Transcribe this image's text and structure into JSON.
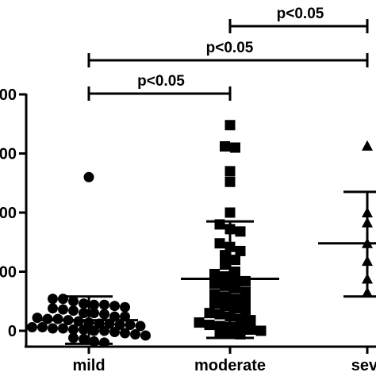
{
  "chart_data": {
    "type": "scatter",
    "subtype": "dot-plot-with-mean-sd",
    "title": "",
    "xlabel": "",
    "ylabel": "",
    "categories": [
      "mild",
      "moderate",
      "seve"
    ],
    "y_tick_labels": [
      "0",
      "00",
      "00",
      "00",
      "00"
    ],
    "y_tick_values": [
      0,
      100,
      200,
      300,
      400
    ],
    "ylim": [
      -20,
      420
    ],
    "grid": false,
    "legend": "none",
    "colors": {
      "points": "#000000",
      "axes": "#000000",
      "background": "#ffffff"
    },
    "groups": [
      {
        "category": "mild",
        "marker": "circle",
        "mean": 18,
        "sd_upper": 58,
        "sd_lower": -22,
        "points": [
          260,
          54,
          54,
          50,
          46,
          44,
          44,
          42,
          40,
          38,
          36,
          34,
          30,
          30,
          28,
          24,
          24,
          22,
          20,
          20,
          18,
          16,
          14,
          12,
          12,
          10,
          10,
          8,
          6,
          6,
          4,
          4,
          2,
          2,
          0,
          0,
          -2,
          -4,
          -6,
          -8,
          -12,
          -14,
          -18,
          -20
        ]
      },
      {
        "category": "moderate",
        "marker": "square",
        "mean": 88,
        "sd_upper": 185,
        "sd_lower": -12,
        "points": [
          348,
          310,
          312,
          270,
          252,
          200,
          180,
          172,
          168,
          148,
          142,
          135,
          128,
          120,
          112,
          100,
          96,
          92,
          88,
          84,
          80,
          76,
          72,
          66,
          62,
          58,
          54,
          50,
          46,
          42,
          38,
          34,
          30,
          28,
          24,
          20,
          18,
          14,
          10,
          8,
          6,
          4,
          2,
          0,
          -2,
          -4,
          -6
        ]
      },
      {
        "category": "seve",
        "marker": "triangle",
        "mean": 148,
        "sd_upper": 235,
        "sd_lower": 58,
        "points": [
          313,
          200,
          183,
          148,
          118,
          88,
          65
        ]
      }
    ],
    "annotations": [
      {
        "text": "p<0.05",
        "from": "moderate",
        "to": "seve",
        "level": 3
      },
      {
        "text": "p<0.05",
        "from": "mild",
        "to": "seve",
        "level": 2
      },
      {
        "text": "p<0.05",
        "from": "mild",
        "to": "moderate",
        "level": 1
      }
    ]
  }
}
